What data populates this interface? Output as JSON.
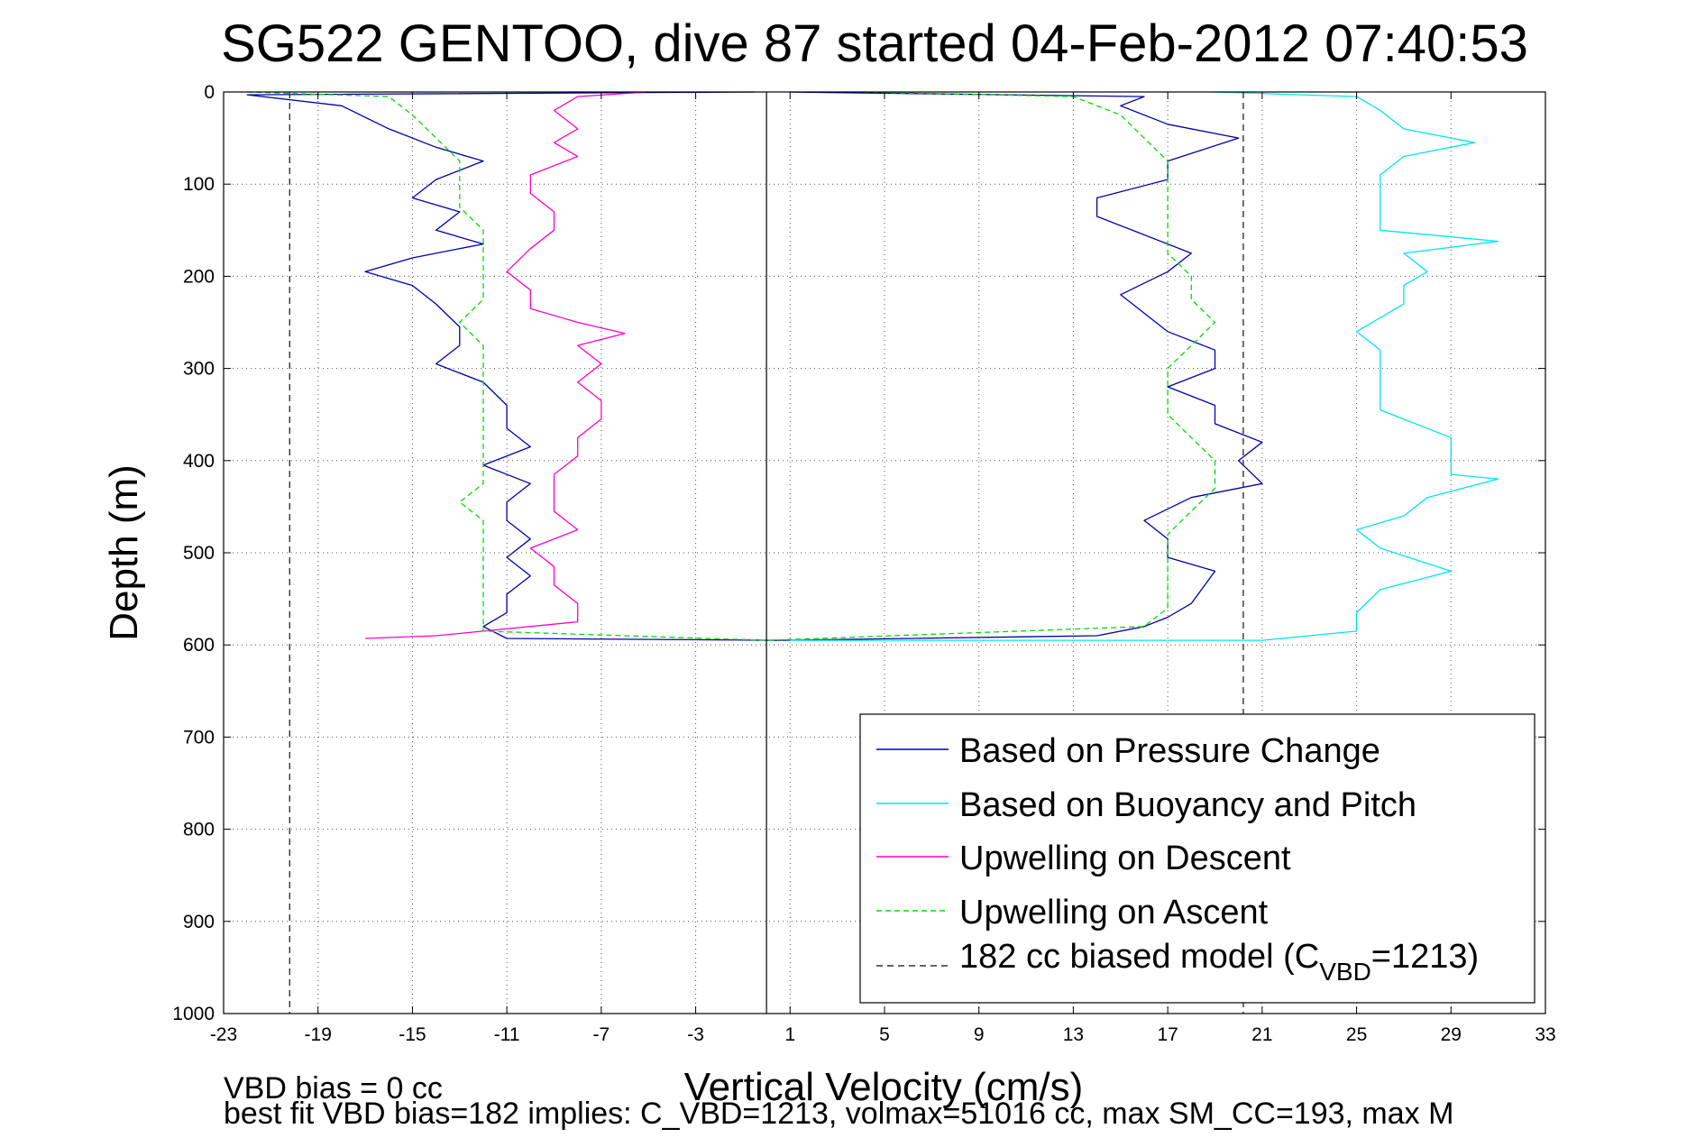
{
  "chart_data": {
    "type": "line",
    "title": "SG522 GENTOO, dive 87 started 04-Feb-2012 07:40:53",
    "xlabel": "Vertical Velocity (cm/s)",
    "ylabel": "Depth (m)",
    "xlim": [
      -23,
      33
    ],
    "ylim": [
      1000,
      0
    ],
    "y_reversed": true,
    "grid": true,
    "grid_style": "dotted",
    "legend_placement": "lower-right",
    "xticks": [
      "-23",
      "-19",
      "-15",
      "-11",
      "-7",
      "-3",
      "1",
      "5",
      "9",
      "13",
      "17",
      "21",
      "25",
      "29",
      "33"
    ],
    "xtick_values": [
      -23,
      -19,
      -15,
      -11,
      -7,
      -3,
      1,
      5,
      9,
      13,
      17,
      21,
      25,
      29,
      33
    ],
    "yticks": [
      "0",
      "100",
      "200",
      "300",
      "400",
      "500",
      "600",
      "700",
      "800",
      "900",
      "1000"
    ],
    "ytick_values": [
      0,
      100,
      200,
      300,
      400,
      500,
      600,
      700,
      800,
      900,
      1000
    ],
    "series": [
      {
        "name": "Based on Pressure Change",
        "color": "#0000aa",
        "style": "solid",
        "points": [
          [
            -0.5,
            0
          ],
          [
            -22,
            3
          ],
          [
            -18,
            15
          ],
          [
            -16,
            40
          ],
          [
            -14,
            60
          ],
          [
            -12,
            75
          ],
          [
            -14,
            95
          ],
          [
            -15,
            115
          ],
          [
            -13,
            130
          ],
          [
            -14,
            150
          ],
          [
            -12,
            165
          ],
          [
            -15,
            180
          ],
          [
            -17,
            195
          ],
          [
            -15,
            210
          ],
          [
            -14,
            230
          ],
          [
            -13,
            255
          ],
          [
            -13,
            275
          ],
          [
            -14,
            295
          ],
          [
            -12,
            315
          ],
          [
            -11,
            340
          ],
          [
            -11,
            365
          ],
          [
            -10,
            385
          ],
          [
            -12,
            405
          ],
          [
            -10,
            425
          ],
          [
            -11,
            445
          ],
          [
            -11,
            465
          ],
          [
            -10,
            485
          ],
          [
            -11,
            505
          ],
          [
            -10,
            525
          ],
          [
            -11,
            545
          ],
          [
            -11,
            565
          ],
          [
            -12,
            580
          ],
          [
            -11,
            593
          ],
          [
            0.5,
            595
          ],
          [
            14,
            590
          ],
          [
            16,
            580
          ],
          [
            17,
            570
          ],
          [
            18,
            555
          ],
          [
            19,
            520
          ],
          [
            17,
            505
          ],
          [
            17,
            485
          ],
          [
            16,
            465
          ],
          [
            18,
            440
          ],
          [
            21,
            425
          ],
          [
            20,
            400
          ],
          [
            21,
            380
          ],
          [
            19,
            360
          ],
          [
            19,
            340
          ],
          [
            17,
            320
          ],
          [
            19,
            300
          ],
          [
            19,
            280
          ],
          [
            17,
            260
          ],
          [
            16,
            240
          ],
          [
            15,
            220
          ],
          [
            17,
            195
          ],
          [
            18,
            175
          ],
          [
            16,
            155
          ],
          [
            14,
            135
          ],
          [
            14,
            115
          ],
          [
            17,
            95
          ],
          [
            17,
            75
          ],
          [
            20,
            50
          ],
          [
            17,
            35
          ],
          [
            15,
            15
          ],
          [
            16,
            5
          ],
          [
            1,
            0
          ]
        ]
      },
      {
        "name": "Based on Buoyancy and Pitch",
        "color": "#00e5ee",
        "style": "solid",
        "points": [
          [
            19,
            0
          ],
          [
            25,
            5
          ],
          [
            26,
            20
          ],
          [
            27,
            40
          ],
          [
            30,
            55
          ],
          [
            27,
            70
          ],
          [
            26,
            90
          ],
          [
            26,
            110
          ],
          [
            26,
            130
          ],
          [
            26,
            150
          ],
          [
            31,
            162
          ],
          [
            27,
            175
          ],
          [
            28,
            195
          ],
          [
            27,
            210
          ],
          [
            27,
            230
          ],
          [
            25,
            260
          ],
          [
            26,
            280
          ],
          [
            26,
            300
          ],
          [
            26,
            320
          ],
          [
            26,
            345
          ],
          [
            29,
            375
          ],
          [
            29,
            395
          ],
          [
            29,
            415
          ],
          [
            31,
            420
          ],
          [
            28,
            440
          ],
          [
            27,
            460
          ],
          [
            25,
            475
          ],
          [
            26,
            495
          ],
          [
            29,
            520
          ],
          [
            26,
            540
          ],
          [
            25,
            565
          ],
          [
            25,
            585
          ],
          [
            21,
            595
          ],
          [
            1,
            595
          ]
        ]
      },
      {
        "name": "Upwelling on Descent",
        "color": "#ff00cc",
        "style": "solid",
        "points": [
          [
            -5,
            0
          ],
          [
            -8,
            5
          ],
          [
            -9,
            20
          ],
          [
            -8,
            40
          ],
          [
            -9,
            55
          ],
          [
            -8,
            70
          ],
          [
            -10,
            90
          ],
          [
            -10,
            110
          ],
          [
            -9,
            130
          ],
          [
            -9,
            150
          ],
          [
            -10,
            170
          ],
          [
            -11,
            195
          ],
          [
            -10,
            215
          ],
          [
            -10,
            235
          ],
          [
            -8,
            250
          ],
          [
            -6,
            262
          ],
          [
            -8,
            275
          ],
          [
            -7,
            295
          ],
          [
            -8,
            315
          ],
          [
            -7,
            335
          ],
          [
            -7,
            355
          ],
          [
            -8,
            375
          ],
          [
            -8,
            395
          ],
          [
            -9,
            415
          ],
          [
            -9,
            435
          ],
          [
            -9,
            455
          ],
          [
            -8,
            475
          ],
          [
            -10,
            495
          ],
          [
            -9,
            515
          ],
          [
            -9,
            535
          ],
          [
            -8,
            555
          ],
          [
            -8,
            575
          ],
          [
            -14,
            590
          ],
          [
            -17,
            593
          ]
        ]
      },
      {
        "name": "Upwelling on Ascent",
        "color": "#00dd00",
        "style": "dashed",
        "points": [
          [
            -22,
            0
          ],
          [
            -16,
            5
          ],
          [
            -15,
            25
          ],
          [
            -14,
            50
          ],
          [
            -13,
            75
          ],
          [
            -13,
            100
          ],
          [
            -13,
            125
          ],
          [
            -12,
            150
          ],
          [
            -12,
            175
          ],
          [
            -12,
            200
          ],
          [
            -12,
            225
          ],
          [
            -13,
            250
          ],
          [
            -12,
            275
          ],
          [
            -12,
            300
          ],
          [
            -12,
            325
          ],
          [
            -12,
            350
          ],
          [
            -12,
            375
          ],
          [
            -12,
            400
          ],
          [
            -12,
            425
          ],
          [
            -13,
            445
          ],
          [
            -12,
            465
          ],
          [
            -12,
            490
          ],
          [
            -12,
            515
          ],
          [
            -12,
            540
          ],
          [
            -12,
            565
          ],
          [
            -12,
            585
          ],
          [
            0,
            595
          ],
          [
            16,
            580
          ],
          [
            17,
            560
          ],
          [
            17,
            535
          ],
          [
            17,
            505
          ],
          [
            17,
            480
          ],
          [
            18,
            455
          ],
          [
            19,
            430
          ],
          [
            19,
            400
          ],
          [
            18,
            375
          ],
          [
            17,
            350
          ],
          [
            17,
            325
          ],
          [
            17,
            300
          ],
          [
            18,
            275
          ],
          [
            19,
            250
          ],
          [
            18,
            225
          ],
          [
            18,
            200
          ],
          [
            17,
            175
          ],
          [
            17,
            150
          ],
          [
            17,
            125
          ],
          [
            17,
            100
          ],
          [
            17,
            75
          ],
          [
            16,
            50
          ],
          [
            15,
            25
          ],
          [
            13,
            5
          ],
          [
            4,
            0
          ]
        ]
      },
      {
        "name": "182 cc biased model (C_VBD=1213)",
        "color": "#333333",
        "style": "dashed",
        "vertical_lines_x": [
          -20.2,
          20.2
        ]
      }
    ],
    "reference_lines": {
      "zero_solid_line_x": 0
    }
  },
  "legend": {
    "items": [
      {
        "label": "Based on Pressure Change",
        "color": "#0000aa",
        "style": "solid"
      },
      {
        "label": "Based on Buoyancy and Pitch",
        "color": "#00e5ee",
        "style": "solid"
      },
      {
        "label": "Upwelling on Descent",
        "color": "#ff00cc",
        "style": "solid"
      },
      {
        "label": "Upwelling on Ascent",
        "color": "#00dd00",
        "style": "dashed"
      }
    ],
    "model_prefix": "182 cc biased model (C",
    "model_sub": "VBD",
    "model_suffix": "=1213)",
    "model_color": "#333333"
  },
  "notes": {
    "line1": "VBD bias = 0 cc",
    "line2": "best fit VBD bias=182 implies: C_VBD=1213, volmax=51016 cc, max SM_CC=193, max M"
  }
}
